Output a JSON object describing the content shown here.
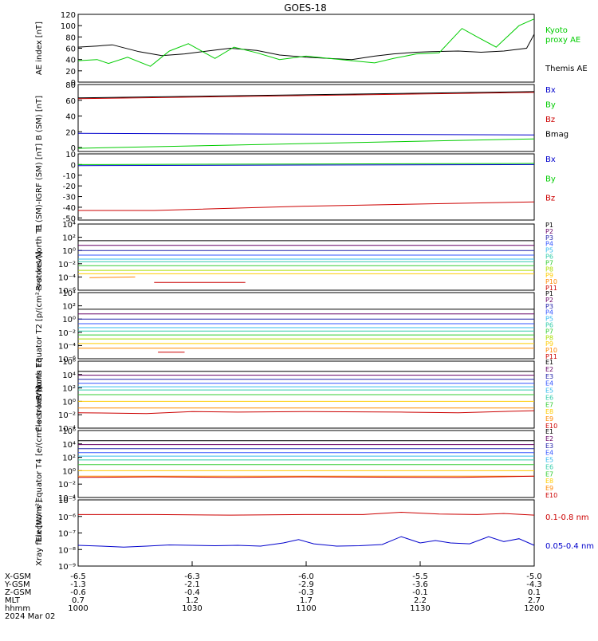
{
  "title": "GOES-18",
  "chart_data": [
    {
      "type": "line",
      "ylabel": "AE index [nT]",
      "ylim": [
        0,
        120
      ],
      "yticks": [
        "0",
        "20",
        "40",
        "60",
        "80",
        "100",
        "120"
      ],
      "series": [
        {
          "name": "Themis AE",
          "color": "#000000",
          "legend_lines": [
            "Themis AE"
          ],
          "x": [
            0,
            0.5,
            0.9,
            1.6,
            2.2,
            2.8,
            3.4,
            4.0,
            4.7,
            5.3,
            6.0,
            6.6,
            7.2,
            7.8,
            8.3,
            8.9,
            9.3,
            10.0,
            10.6,
            11.2,
            11.8,
            12.0
          ],
          "values": [
            62,
            64,
            66,
            54,
            47,
            50,
            55,
            60,
            56,
            48,
            44,
            42,
            40,
            46,
            50,
            53,
            54,
            55,
            53,
            55,
            60,
            85
          ]
        },
        {
          "name": "Kyoto proxy AE",
          "color": "#00cc00",
          "legend_lines": [
            "Kyoto",
            "proxy AE"
          ],
          "x": [
            0,
            0.5,
            0.8,
            1.3,
            1.9,
            2.4,
            2.9,
            3.6,
            4.1,
            4.7,
            5.3,
            6.0,
            6.6,
            7.2,
            7.8,
            8.3,
            8.9,
            9.5,
            10.1,
            10.5,
            11.0,
            11.6,
            12.0
          ],
          "values": [
            38,
            40,
            33,
            44,
            28,
            55,
            68,
            42,
            62,
            52,
            40,
            46,
            42,
            38,
            34,
            42,
            50,
            52,
            95,
            80,
            62,
            100,
            112
          ]
        }
      ]
    },
    {
      "type": "line",
      "ylabel": "B (SM) [nT]",
      "ylim": [
        -5,
        80
      ],
      "yticks": [
        "0",
        "20",
        "40",
        "60",
        "80"
      ],
      "series": [
        {
          "name": "Bx",
          "color": "#0000cc",
          "x": [
            0,
            12
          ],
          "values": [
            18,
            16
          ]
        },
        {
          "name": "By",
          "color": "#00cc00",
          "x": [
            0,
            12
          ],
          "values": [
            -1,
            11
          ]
        },
        {
          "name": "Bz",
          "color": "#cc0000",
          "x": [
            0,
            12
          ],
          "values": [
            62,
            70
          ]
        },
        {
          "name": "Bmag",
          "color": "#000000",
          "x": [
            0,
            12
          ],
          "values": [
            63,
            71
          ]
        }
      ]
    },
    {
      "type": "line",
      "ylabel": "B (SM)-IGRF (SM) [nT]",
      "ylim": [
        -52,
        10
      ],
      "yticks": [
        "-50",
        "-40",
        "-30",
        "-20",
        "-10",
        "0",
        "10"
      ],
      "series": [
        {
          "name": "Bx",
          "color": "#0000cc",
          "x": [
            0,
            12
          ],
          "values": [
            -1,
            0
          ]
        },
        {
          "name": "By",
          "color": "#00cc00",
          "x": [
            0,
            12
          ],
          "values": [
            0,
            1
          ]
        },
        {
          "name": "Bz",
          "color": "#cc0000",
          "x": [
            0,
            2,
            6,
            12
          ],
          "values": [
            -43,
            -43,
            -39,
            -35
          ]
        }
      ]
    },
    {
      "type": "line",
      "ylabel": "Protons North T1",
      "log": true,
      "ylim_exp": [
        -6,
        4
      ],
      "yticks": [
        "10⁻⁶",
        "10⁻⁴",
        "10⁻²",
        "10⁰",
        "10²",
        "10⁴"
      ],
      "series": [
        {
          "name": "P1",
          "color": "#000000",
          "x": [
            0,
            12
          ],
          "values": [
            30,
            30
          ]
        },
        {
          "name": "P2",
          "color": "#660066",
          "x": [
            0,
            12
          ],
          "values": [
            6,
            6
          ]
        },
        {
          "name": "P3",
          "color": "#2222aa",
          "x": [
            0,
            12
          ],
          "values": [
            1,
            1
          ]
        },
        {
          "name": "P4",
          "color": "#3355ff",
          "x": [
            0,
            12
          ],
          "values": [
            0.2,
            0.2
          ]
        },
        {
          "name": "P5",
          "color": "#33bbee",
          "x": [
            0,
            12
          ],
          "values": [
            0.05,
            0.05
          ]
        },
        {
          "name": "P6",
          "color": "#33ccaa",
          "x": [
            0,
            12
          ],
          "values": [
            0.02,
            0.02
          ]
        },
        {
          "name": "P7",
          "color": "#33cc33",
          "x": [
            0,
            12
          ],
          "values": [
            0.005,
            0.005
          ]
        },
        {
          "name": "P8",
          "color": "#aadd00",
          "x": [
            0,
            12
          ],
          "values": [
            0.001,
            0.001
          ]
        },
        {
          "name": "P9",
          "color": "#ffcc00",
          "x": [
            0,
            12
          ],
          "values": [
            0.0003,
            0.0003
          ]
        },
        {
          "name": "P10",
          "color": "#ff8800",
          "x": [
            0.3,
            1.5
          ],
          "values": [
            8e-05,
            0.0001
          ]
        },
        {
          "name": "P11",
          "color": "#cc0000",
          "x": [
            2.0,
            4.4
          ],
          "values": [
            1.5e-05,
            1.5e-05
          ]
        }
      ]
    },
    {
      "type": "line",
      "ylabel": "Protons Equator T2 [p/(cm²-s-sr-keV)]",
      "log": true,
      "ylim_exp": [
        -6,
        4
      ],
      "yticks": [
        "10⁻⁶",
        "10⁻⁴",
        "10⁻²",
        "10⁰",
        "10²",
        "10⁴"
      ],
      "series": [
        {
          "name": "P1",
          "color": "#000000",
          "x": [
            0,
            12
          ],
          "values": [
            30,
            30
          ]
        },
        {
          "name": "P2",
          "color": "#660066",
          "x": [
            0,
            12
          ],
          "values": [
            6,
            6
          ]
        },
        {
          "name": "P3",
          "color": "#2222aa",
          "x": [
            0,
            12
          ],
          "values": [
            1,
            1
          ]
        },
        {
          "name": "P4",
          "color": "#3355ff",
          "x": [
            0,
            12
          ],
          "values": [
            0.2,
            0.2
          ]
        },
        {
          "name": "P5",
          "color": "#33bbee",
          "x": [
            0,
            12
          ],
          "values": [
            0.05,
            0.05
          ]
        },
        {
          "name": "P6",
          "color": "#33ccaa",
          "x": [
            0,
            12
          ],
          "values": [
            0.015,
            0.015
          ]
        },
        {
          "name": "P7",
          "color": "#33cc33",
          "x": [
            0,
            12
          ],
          "values": [
            0.004,
            0.004
          ]
        },
        {
          "name": "P8",
          "color": "#aadd00",
          "x": [
            0,
            12
          ],
          "values": [
            0.001,
            0.001
          ]
        },
        {
          "name": "P9",
          "color": "#ffcc00",
          "x": [
            0,
            12
          ],
          "values": [
            0.0002,
            0.0002
          ]
        },
        {
          "name": "P10",
          "color": "#ff8800",
          "x": [
            0,
            12
          ],
          "values": [
            4e-05,
            4e-05
          ]
        },
        {
          "name": "P11",
          "color": "#cc0000",
          "x": [
            2.1,
            2.8
          ],
          "values": [
            1e-05,
            1e-05
          ]
        }
      ]
    },
    {
      "type": "line",
      "ylabel": "Electrons North T3",
      "log": true,
      "ylim_exp": [
        -4,
        6
      ],
      "yticks": [
        "10⁻⁴",
        "10⁻²",
        "10⁰",
        "10²",
        "10⁴",
        "10⁶"
      ],
      "series": [
        {
          "name": "E1",
          "color": "#000000",
          "x": [
            0,
            12
          ],
          "values": [
            30000,
            30000
          ]
        },
        {
          "name": "E2",
          "color": "#660066",
          "x": [
            0,
            12
          ],
          "values": [
            8000,
            8000
          ]
        },
        {
          "name": "E3",
          "color": "#2222aa",
          "x": [
            0,
            12
          ],
          "values": [
            2000,
            2000
          ]
        },
        {
          "name": "E4",
          "color": "#3355ff",
          "x": [
            0,
            12
          ],
          "values": [
            500,
            500
          ]
        },
        {
          "name": "E5",
          "color": "#33bbee",
          "x": [
            0,
            12
          ],
          "values": [
            150,
            150
          ]
        },
        {
          "name": "E6",
          "color": "#33ccaa",
          "x": [
            0,
            12
          ],
          "values": [
            50,
            50
          ]
        },
        {
          "name": "E7",
          "color": "#33cc33",
          "x": [
            0,
            12
          ],
          "values": [
            10,
            10
          ]
        },
        {
          "name": "E8",
          "color": "#ffcc00",
          "x": [
            0,
            12
          ],
          "values": [
            1,
            1
          ]
        },
        {
          "name": "E9",
          "color": "#ff8800",
          "x": [
            0,
            12
          ],
          "values": [
            0.1,
            0.1
          ]
        },
        {
          "name": "E10",
          "color": "#cc0000",
          "x": [
            0,
            1.8,
            3.0,
            4.2,
            6.0,
            8.5,
            10.0,
            12.0
          ],
          "values": [
            0.02,
            0.015,
            0.03,
            0.025,
            0.03,
            0.025,
            0.02,
            0.04
          ]
        }
      ]
    },
    {
      "type": "line",
      "ylabel": "Electrons Equator T4 [e/(cm²-s-sr-keV)]",
      "log": true,
      "ylim_exp": [
        -4,
        6
      ],
      "yticks": [
        "10⁻⁴",
        "10⁻²",
        "10⁰",
        "10²",
        "10⁴",
        "10⁶"
      ],
      "series": [
        {
          "name": "E1",
          "color": "#000000",
          "x": [
            0,
            12
          ],
          "values": [
            30000,
            30000
          ]
        },
        {
          "name": "E2",
          "color": "#660066",
          "x": [
            0,
            12
          ],
          "values": [
            8000,
            8000
          ]
        },
        {
          "name": "E3",
          "color": "#2222aa",
          "x": [
            0,
            12
          ],
          "values": [
            2000,
            2000
          ]
        },
        {
          "name": "E4",
          "color": "#3355ff",
          "x": [
            0,
            12
          ],
          "values": [
            500,
            500
          ]
        },
        {
          "name": "E5",
          "color": "#33bbee",
          "x": [
            0,
            12
          ],
          "values": [
            150,
            150
          ]
        },
        {
          "name": "E6",
          "color": "#33ccaa",
          "x": [
            0,
            12
          ],
          "values": [
            40,
            40
          ]
        },
        {
          "name": "E7",
          "color": "#33cc33",
          "x": [
            0,
            12
          ],
          "values": [
            8,
            8
          ]
        },
        {
          "name": "E8",
          "color": "#ffcc00",
          "x": [
            0,
            12
          ],
          "values": [
            1,
            1
          ]
        },
        {
          "name": "E9",
          "color": "#ff8800",
          "x": [
            0,
            12
          ],
          "values": [
            0.15,
            0.15
          ]
        },
        {
          "name": "E10",
          "color": "#cc0000",
          "x": [
            0,
            2.0,
            4.0,
            6.0,
            8.0,
            10.0,
            12.0
          ],
          "values": [
            0.1,
            0.12,
            0.1,
            0.12,
            0.11,
            0.1,
            0.15
          ]
        }
      ]
    },
    {
      "type": "line",
      "ylabel": "Xray flux [W/m²]",
      "log": true,
      "ylim_exp": [
        -9,
        -5
      ],
      "yticks": [
        "10⁻⁹",
        "10⁻⁸",
        "10⁻⁷",
        "10⁻⁶",
        "10⁻⁵"
      ],
      "series": [
        {
          "name": "0.1-0.8 nm",
          "color": "#cc0000",
          "x": [
            0,
            2,
            4,
            6,
            7.5,
            8.5,
            9.5,
            10.5,
            11.2,
            12
          ],
          "values": [
            1.3e-06,
            1.3e-06,
            1.2e-06,
            1.3e-06,
            1.3e-06,
            1.8e-06,
            1.4e-06,
            1.3e-06,
            1.5e-06,
            1.2e-06
          ]
        },
        {
          "name": "0.05-0.4 nm",
          "color": "#0000cc",
          "x": [
            0,
            0.6,
            1.2,
            1.8,
            2.4,
            3.0,
            3.6,
            4.2,
            4.8,
            5.4,
            5.8,
            6.2,
            6.8,
            7.4,
            8.0,
            8.5,
            9.0,
            9.4,
            9.8,
            10.3,
            10.8,
            11.2,
            11.6,
            12.0
          ],
          "values": [
            1.8e-08,
            1.6e-08,
            1.4e-08,
            1.6e-08,
            1.9e-08,
            1.8e-08,
            1.7e-08,
            1.8e-08,
            1.6e-08,
            2.5e-08,
            4e-08,
            2.2e-08,
            1.6e-08,
            1.7e-08,
            2e-08,
            6e-08,
            2.5e-08,
            3.5e-08,
            2.5e-08,
            2.2e-08,
            6e-08,
            3e-08,
            4.5e-08,
            1.8e-08
          ]
        }
      ]
    }
  ],
  "xaxis": {
    "rows": [
      {
        "label": "X-GSM",
        "values": [
          "-6.5",
          "-6.3",
          "-6.0",
          "-5.5",
          "-5.0"
        ]
      },
      {
        "label": "Y-GSM",
        "values": [
          "-1.3",
          "-2.1",
          "-2.9",
          "-3.6",
          "-4.3"
        ]
      },
      {
        "label": "Z-GSM",
        "values": [
          "-0.6",
          "-0.4",
          "-0.3",
          "-0.1",
          "0.1"
        ]
      },
      {
        "label": "MLT",
        "values": [
          "0.7",
          "1.2",
          "1.7",
          "2.2",
          "2.7"
        ]
      },
      {
        "label": "hhmm",
        "values": [
          "1000",
          "1030",
          "1100",
          "1130",
          "1200"
        ]
      }
    ],
    "date": "2024 Mar 02"
  }
}
